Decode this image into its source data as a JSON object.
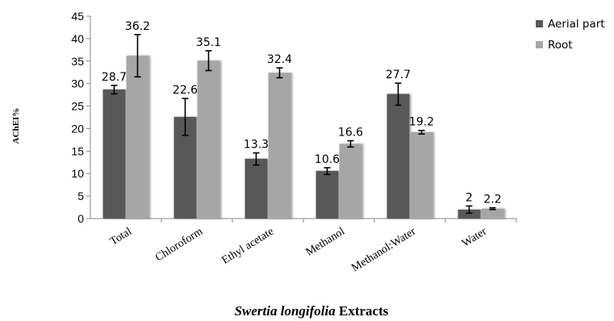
{
  "chart_data": {
    "type": "bar",
    "ylabel": "AChEI%",
    "xlabel_italic": "Swertia longifolia",
    "xlabel_rest": " Extracts",
    "ylim": [
      0,
      45
    ],
    "yticks": [
      0,
      5,
      10,
      15,
      20,
      25,
      30,
      35,
      40,
      45
    ],
    "categories": [
      "Total",
      "Chloroform",
      "Ethyl acetate",
      "Methanol",
      "Methanol:Water",
      "Water"
    ],
    "series": [
      {
        "name": "Aerial part",
        "color": "#595959",
        "values": [
          28.7,
          22.6,
          13.3,
          10.6,
          27.7,
          2
        ],
        "labels": [
          "28.7",
          "22.6",
          "13.3",
          "10.6",
          "27.7",
          "2"
        ],
        "err_low": [
          27.7,
          18.5,
          11.9,
          9.8,
          25.2,
          1.2
        ],
        "err_high": [
          29.6,
          26.7,
          14.6,
          11.3,
          30.1,
          2.8
        ]
      },
      {
        "name": "Root",
        "color": "#a6a6a6",
        "values": [
          36.2,
          35.1,
          32.4,
          16.6,
          19.2,
          2.2
        ],
        "labels": [
          "36.2",
          "35.1",
          "32.4",
          "16.6",
          "19.2",
          "2.2"
        ],
        "err_low": [
          31.5,
          32.9,
          31.3,
          15.9,
          18.8,
          2.0
        ],
        "err_high": [
          40.9,
          37.3,
          33.5,
          17.3,
          19.6,
          2.4
        ]
      }
    ],
    "legend_position": "top-right",
    "grid": false
  }
}
